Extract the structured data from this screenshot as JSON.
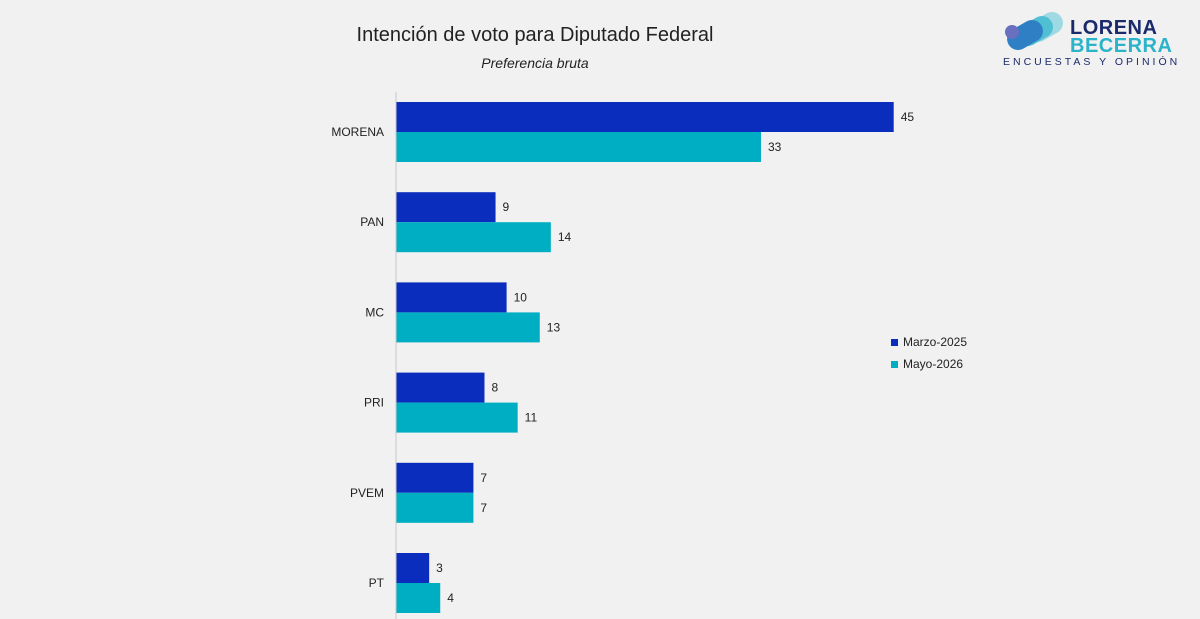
{
  "header": {
    "title": "Intención de voto para Diputado Federal",
    "subtitle": "Preferencia bruta"
  },
  "logo": {
    "line1": "LORENA",
    "line2": "BECERRA",
    "tagline": "ENCUESTAS Y OPINIÓN"
  },
  "colors": {
    "series_1": "#0a2dbd",
    "series_2": "#00aec4"
  },
  "chart_data": {
    "type": "bar",
    "orientation": "horizontal",
    "title": "Intención de voto para Diputado Federal",
    "subtitle": "Preferencia bruta",
    "categories": [
      "MORENA",
      "PAN",
      "MC",
      "PRI",
      "PVEM",
      "PT"
    ],
    "series": [
      {
        "name": "Marzo-2025",
        "values": [
          45,
          9,
          10,
          8,
          7,
          3
        ]
      },
      {
        "name": "Mayo-2026",
        "values": [
          33,
          14,
          13,
          11,
          7,
          4
        ]
      }
    ],
    "xlim": [
      0,
      50
    ],
    "grid": false,
    "legend": "right"
  }
}
